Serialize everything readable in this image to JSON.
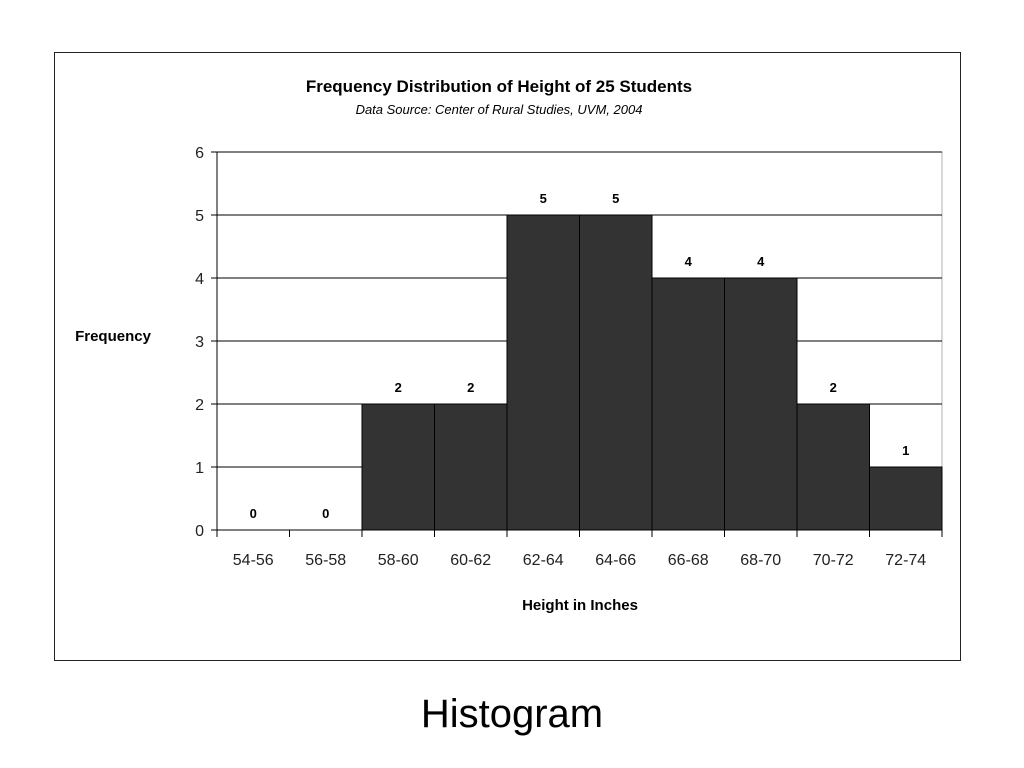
{
  "slide": {
    "caption": "Histogram"
  },
  "colors": {
    "bar_fill": "#333333",
    "plot_border": "#b0b0b0",
    "gridline": "#000000",
    "background": "#ffffff"
  },
  "chart_data": {
    "type": "bar",
    "title": "Frequency Distribution of Height of 25 Students",
    "subtitle": "Data Source: Center of Rural Studies, UVM, 2004",
    "xlabel": "Height in Inches",
    "ylabel": "Frequency",
    "categories": [
      "54-56",
      "56-58",
      "58-60",
      "60-62",
      "62-64",
      "64-66",
      "66-68",
      "68-70",
      "70-72",
      "72-74"
    ],
    "values": [
      0,
      0,
      2,
      2,
      5,
      5,
      4,
      4,
      2,
      1
    ],
    "data_labels": [
      "0",
      "0",
      "2",
      "2",
      "5",
      "5",
      "4",
      "4",
      "2",
      "1"
    ],
    "ylim": [
      0,
      6
    ],
    "yticks": [
      "0",
      "1",
      "2",
      "3",
      "4",
      "5",
      "6"
    ],
    "grid": true,
    "legend": "none"
  }
}
